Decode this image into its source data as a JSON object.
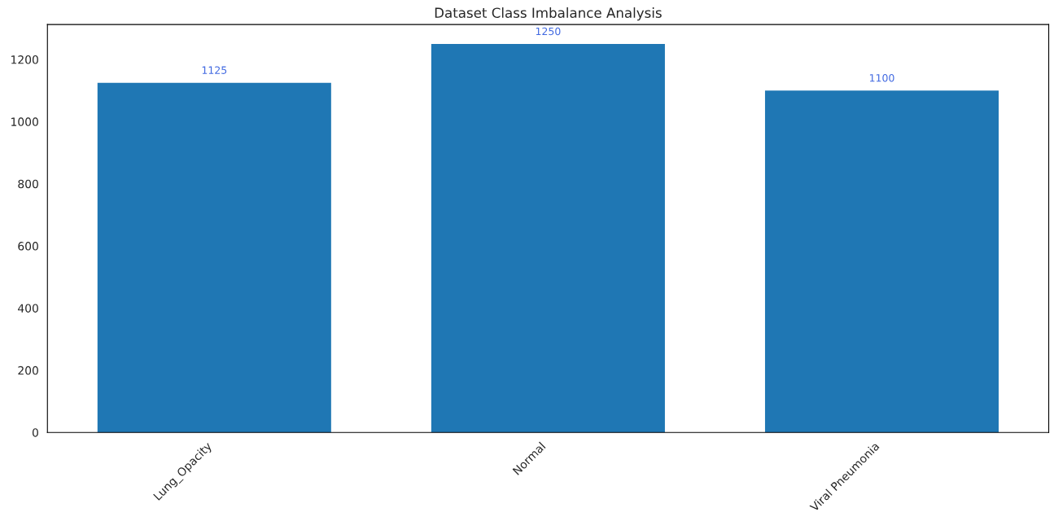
{
  "chart_data": {
    "type": "bar",
    "title": "Dataset Class Imbalance Analysis",
    "categories": [
      "Lung_Opacity",
      "Normal",
      "Viral Pneumonia"
    ],
    "values": [
      1125,
      1250,
      1100
    ],
    "color": "#1f77b4",
    "ylim": [
      0,
      1312.5
    ],
    "yticks": [
      0,
      200,
      400,
      600,
      800,
      1000,
      1200
    ],
    "data_labels": true,
    "grid": false
  }
}
